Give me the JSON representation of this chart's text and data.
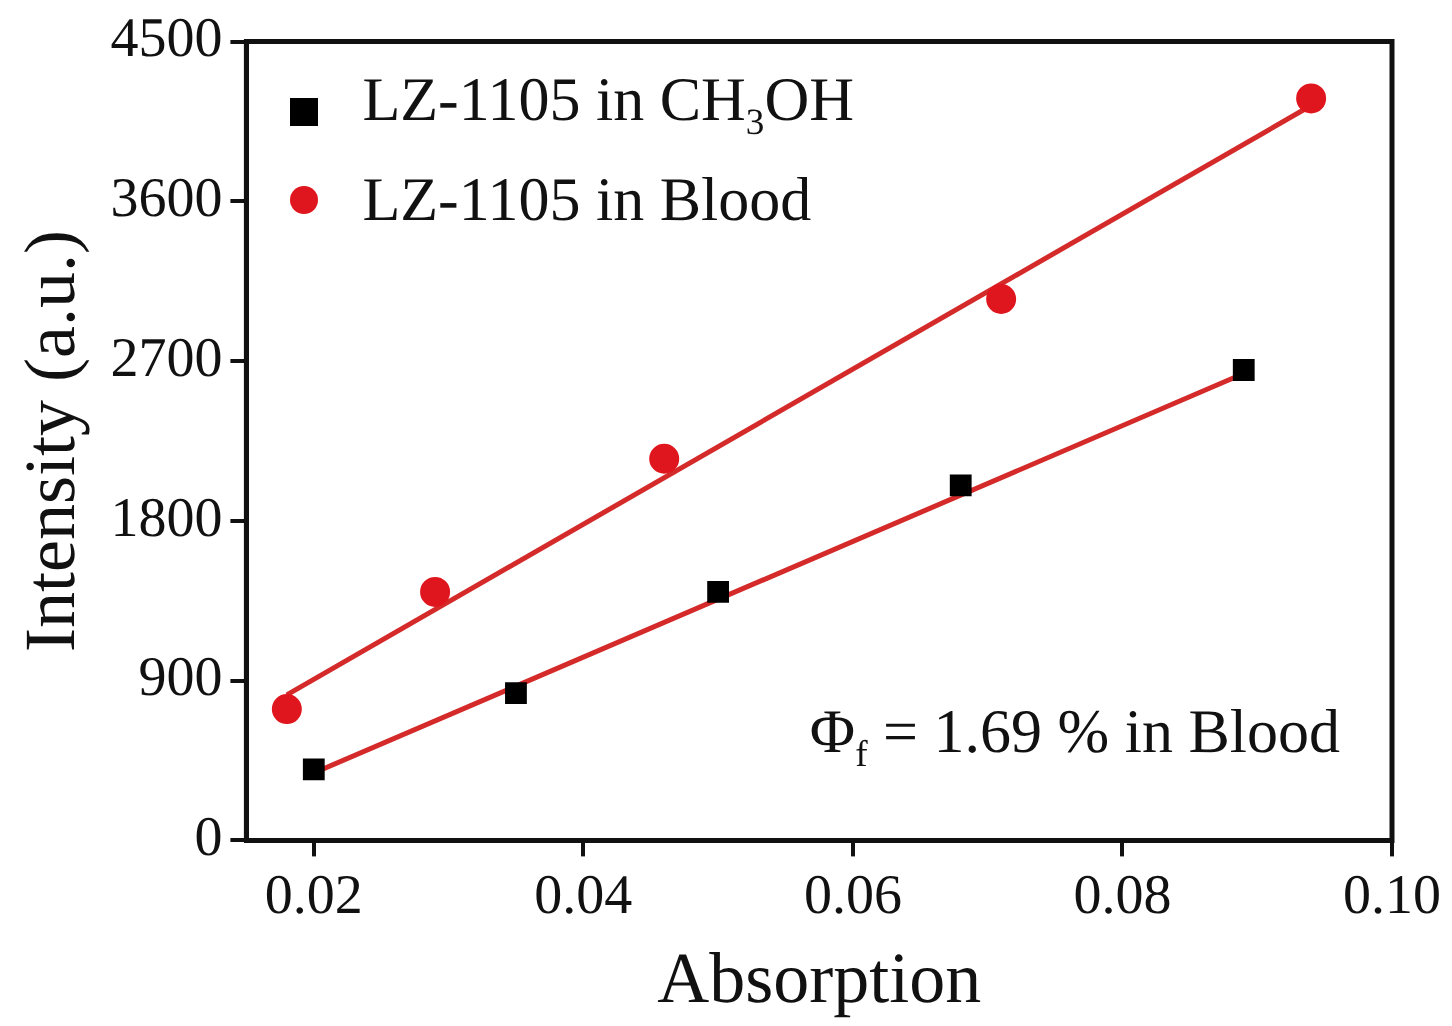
{
  "chart_data": {
    "type": "scatter",
    "xlabel": "Absorption",
    "ylabel": "Intensity (a.u.)",
    "xlim": [
      0.015,
      0.1
    ],
    "xticks": [
      0.02,
      0.04,
      0.06,
      0.08,
      {
        "value": 0.1,
        "label": "0.10"
      }
    ],
    "ylim": [
      0,
      4500
    ],
    "yticks": [
      0,
      900,
      1800,
      2700,
      3600,
      4500
    ],
    "grid": false,
    "legend": "top left",
    "annotations": [
      "Φ$_{f}$ = 1.69 % in Blood"
    ],
    "series": [
      {
        "name": "LZ-1105 in CH$_{3}$OH",
        "marker": "square",
        "color": "#000000",
        "x": [
          0.02,
          0.035,
          0.05,
          0.068,
          0.089
        ],
        "values": [
          400,
          830,
          1400,
          2000,
          2650
        ]
      },
      {
        "name": "LZ-1105 in Blood",
        "marker": "circle",
        "color": "#e0161e",
        "x": [
          0.018,
          0.029,
          0.046,
          0.071,
          0.094
        ],
        "values": [
          740,
          1400,
          2150,
          3050,
          4180
        ]
      },
      {
        "type": "line",
        "marker": "none",
        "color": "#d42a2a",
        "x": [
          0.02,
          0.089
        ],
        "values": [
          380,
          2630
        ]
      },
      {
        "type": "line",
        "marker": "none",
        "color": "#d42a2a",
        "x": [
          0.018,
          0.094
        ],
        "values": [
          820,
          4140
        ]
      }
    ]
  }
}
